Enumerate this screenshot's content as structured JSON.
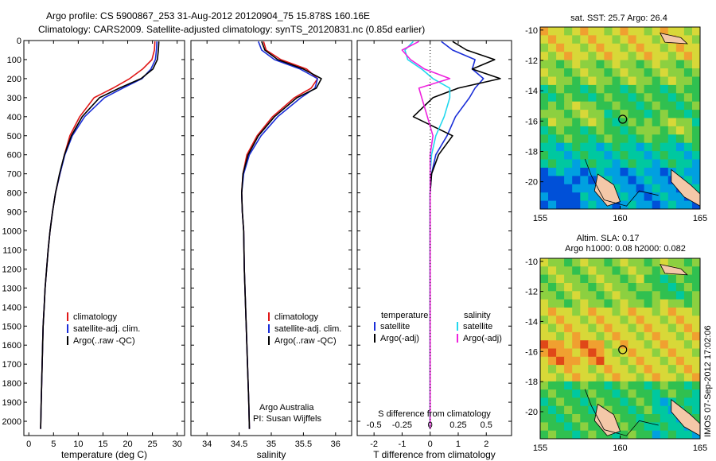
{
  "title": {
    "line1": "Argo profile: CS 5900867_253 31-Aug-2012 20120904_75 15.878S 160.16E",
    "line2": "Climatology: CARS2009. Satellite-adjusted climatology: synTS_20120831.nc (0.85d earlier)"
  },
  "colors": {
    "climatology": "#e01818",
    "satellite": "#1a2ed8",
    "argo": "#000000",
    "sal_satellite": "#22d8ee",
    "sal_argo": "#ee22dd"
  },
  "chart_data": [
    {
      "type": "line",
      "panel": "temperature",
      "xlabel": "temperature (deg C)",
      "ylabel": "",
      "xlim": [
        -1,
        31.5
      ],
      "ylim": [
        2075,
        0
      ],
      "xticks": [
        0,
        5,
        10,
        15,
        20,
        25,
        30
      ],
      "xtick_labels": [
        "0",
        "5",
        "10",
        "15",
        "20",
        "25",
        "30"
      ],
      "yticks": [
        0,
        100,
        200,
        300,
        400,
        500,
        600,
        700,
        800,
        900,
        1000,
        1100,
        1200,
        1300,
        1400,
        1500,
        1600,
        1700,
        1800,
        1900,
        2000
      ],
      "ytick_labels": [
        "0",
        "100",
        "200",
        "300",
        "400",
        "500",
        "600",
        "700",
        "800",
        "900",
        "1000",
        "1100",
        "1200",
        "1300",
        "1400",
        "1500",
        "1600",
        "1700",
        "1800",
        "1900",
        "2000"
      ],
      "legend": [
        "climatology",
        "satellite-adj. clim.",
        "Argo(..raw -QC)"
      ],
      "series": [
        {
          "name": "climatology",
          "key": "climatology",
          "x": [
            25.5,
            25.4,
            24.9,
            23.0,
            20.4,
            17.0,
            13.2,
            10.3,
            8.3,
            7.2,
            6.3,
            5.4,
            4.8,
            4.3,
            3.9,
            3.6,
            3.3,
            3.1,
            2.9,
            2.8,
            2.7,
            2.6,
            2.5,
            2.4
          ],
          "y": [
            5,
            50,
            100,
            150,
            200,
            250,
            300,
            400,
            500,
            600,
            700,
            800,
            900,
            1000,
            1100,
            1200,
            1300,
            1400,
            1500,
            1600,
            1700,
            1800,
            1900,
            2040
          ]
        },
        {
          "name": "satellite-adj. clim.",
          "key": "satellite",
          "x": [
            25.9,
            25.8,
            25.6,
            24.7,
            22.9,
            19.0,
            15.3,
            11.3,
            8.8,
            7.3,
            6.3,
            5.4,
            4.8,
            4.3,
            3.9,
            3.6,
            3.3,
            3.1,
            2.9,
            2.8,
            2.7,
            2.6,
            2.5,
            2.4
          ],
          "y": [
            5,
            50,
            100,
            150,
            200,
            250,
            300,
            400,
            500,
            600,
            700,
            800,
            900,
            1000,
            1100,
            1200,
            1300,
            1400,
            1500,
            1600,
            1700,
            1800,
            1900,
            2040
          ]
        },
        {
          "name": "Argo(..raw -QC)",
          "key": "argo",
          "x": [
            26.3,
            26.2,
            26.0,
            25.1,
            22.7,
            18.3,
            14.3,
            10.8,
            8.6,
            7.2,
            6.2,
            5.4,
            4.8,
            4.3,
            3.9,
            3.6,
            3.3,
            3.1,
            2.9,
            2.8,
            2.7,
            2.6,
            2.5,
            2.4
          ],
          "y": [
            5,
            50,
            100,
            150,
            200,
            250,
            300,
            400,
            500,
            600,
            700,
            800,
            900,
            1000,
            1100,
            1200,
            1300,
            1400,
            1500,
            1600,
            1700,
            1800,
            1900,
            2040
          ]
        }
      ]
    },
    {
      "type": "line",
      "panel": "salinity",
      "xlabel": "salinity",
      "ylabel": "",
      "xlim": [
        33.75,
        36.25
      ],
      "ylim": [
        2075,
        0
      ],
      "xticks": [
        34,
        34.5,
        35,
        35.5,
        36
      ],
      "xtick_labels": [
        "34",
        "34.5",
        "35",
        "35.5",
        "36"
      ],
      "legend": [
        "climatology",
        "satellite-adj. clim.",
        "Argo(..raw -QC)"
      ],
      "annotation": [
        "Argo Australia",
        "PI: Susan Wijffels"
      ],
      "series": [
        {
          "name": "climatology",
          "key": "climatology",
          "x": [
            34.88,
            34.92,
            35.15,
            35.55,
            35.72,
            35.62,
            35.36,
            35.02,
            34.78,
            34.62,
            34.56,
            34.54,
            34.55,
            34.57,
            34.58,
            34.6,
            34.61,
            34.62,
            34.63,
            34.64,
            34.65,
            34.66
          ],
          "y": [
            5,
            50,
            100,
            150,
            200,
            250,
            300,
            400,
            500,
            600,
            700,
            800,
            900,
            1000,
            1200,
            1400,
            1500,
            1600,
            1700,
            1800,
            1900,
            2040
          ]
        },
        {
          "name": "satellite-adj. clim.",
          "key": "satellite",
          "x": [
            34.8,
            34.85,
            35.05,
            35.45,
            35.72,
            35.68,
            35.46,
            35.1,
            34.84,
            34.66,
            34.57,
            34.54,
            34.55,
            34.57,
            34.58,
            34.6,
            34.61,
            34.62,
            34.63,
            34.64,
            34.65,
            34.66
          ],
          "y": [
            5,
            50,
            100,
            150,
            200,
            250,
            300,
            400,
            500,
            600,
            700,
            800,
            900,
            1000,
            1200,
            1400,
            1500,
            1600,
            1700,
            1800,
            1900,
            2040
          ]
        },
        {
          "name": "Argo(..raw -QC)",
          "key": "argo",
          "x": [
            34.85,
            34.9,
            35.1,
            35.5,
            35.78,
            35.7,
            35.4,
            35.05,
            34.8,
            34.64,
            34.56,
            34.54,
            34.55,
            34.57,
            34.58,
            34.6,
            34.61,
            34.62,
            34.63,
            34.64,
            34.65,
            34.66
          ],
          "y": [
            5,
            50,
            100,
            150,
            200,
            250,
            300,
            400,
            500,
            600,
            700,
            800,
            900,
            1000,
            1200,
            1400,
            1500,
            1600,
            1700,
            1800,
            1900,
            2040
          ]
        }
      ]
    },
    {
      "type": "line",
      "panel": "difference",
      "xlabel_top": "S difference from climatology",
      "xlabel": "T difference from climatology",
      "xlim": [
        -2.6,
        2.9
      ],
      "ylim": [
        2075,
        0
      ],
      "xticks": [
        -2,
        -1,
        0,
        1,
        2
      ],
      "xtick_labels": [
        "-2",
        "-1",
        "0",
        "1",
        "2"
      ],
      "xticks_top": [
        -0.5,
        -0.25,
        0,
        0.25,
        0.5
      ],
      "xtick_labels_top": [
        "-0.5",
        "-0.25",
        "0",
        "0.25",
        "0.5"
      ],
      "legend": {
        "temperature_header": "temperature",
        "temperature": [
          "satellite",
          "Argo(-adj)"
        ],
        "salinity_header": "salinity",
        "salinity": [
          "satellite",
          "Argo(-adj)"
        ]
      },
      "series": [
        {
          "name": "temperature satellite",
          "key": "satellite",
          "x": [
            0.4,
            0.8,
            1.6,
            1.5,
            1.9,
            1.6,
            1.4,
            0.9,
            0.6,
            0.2,
            0.05,
            0.0,
            0.0,
            0.0,
            0.0,
            0.0,
            0.0,
            0.0,
            0.0
          ],
          "y": [
            5,
            50,
            100,
            150,
            200,
            250,
            300,
            400,
            500,
            600,
            700,
            800,
            1000,
            1200,
            1400,
            1600,
            1800,
            1900,
            2040
          ]
        },
        {
          "name": "temperature Argo(-adj)",
          "key": "argo",
          "x": [
            0.8,
            1.3,
            2.3,
            1.5,
            2.5,
            1.0,
            0.1,
            -0.6,
            0.8,
            0.3,
            0.05,
            0.0,
            0.0,
            0.0,
            0.0,
            0.0,
            0.0,
            0.0,
            0.0
          ],
          "y": [
            5,
            50,
            100,
            150,
            200,
            250,
            300,
            400,
            500,
            600,
            700,
            800,
            1000,
            1200,
            1400,
            1600,
            1800,
            1900,
            2040
          ]
        },
        {
          "name": "salinity satellite",
          "key": "sal_satellite",
          "x": [
            -0.6,
            -0.9,
            -0.8,
            -0.3,
            0.1,
            0.7,
            0.7,
            0.5,
            0.2,
            0.05,
            0.0,
            0.0,
            0.0,
            0.0,
            0.0,
            0.0,
            0.0,
            0.0,
            0.0
          ],
          "y": [
            5,
            50,
            100,
            150,
            200,
            250,
            300,
            400,
            500,
            600,
            700,
            800,
            1000,
            1200,
            1400,
            1600,
            1800,
            1900,
            2040
          ]
        },
        {
          "name": "salinity Argo(-adj)",
          "key": "sal_argo",
          "x": [
            -0.4,
            -1.0,
            -0.7,
            -0.2,
            0.7,
            -0.4,
            -0.3,
            -0.1,
            0.1,
            0.0,
            0.0,
            0.0,
            0.0,
            0.0,
            0.0,
            0.0,
            0.0,
            0.0,
            0.0
          ],
          "y": [
            5,
            50,
            100,
            150,
            200,
            250,
            300,
            400,
            500,
            600,
            700,
            800,
            1000,
            1200,
            1400,
            1600,
            1800,
            1900,
            2040
          ]
        }
      ]
    },
    {
      "type": "heatmap",
      "panel": "map-sst",
      "title": "sat. SST: 25.7  Argo: 26.4",
      "xlim": [
        155,
        165
      ],
      "ylim": [
        -21.8,
        -9.8
      ],
      "xticks": [
        155,
        160,
        165
      ],
      "xtick_labels": [
        "155",
        "160",
        "165"
      ],
      "yticks": [
        -10,
        -12,
        -14,
        -16,
        -18,
        -20
      ],
      "ytick_labels": [
        "-10",
        "-12",
        "-14",
        "-16",
        "-18",
        "-20"
      ],
      "marker": {
        "lon": 160.16,
        "lat": -15.878
      },
      "colormap": [
        "#0050d8",
        "#00a0e0",
        "#00c8a0",
        "#30c050",
        "#8cd040",
        "#d8d838",
        "#f0a030",
        "#e04818"
      ],
      "bands": [
        {
          "lat_top": -9.8,
          "lat_bottom": -12.2,
          "level": 5
        },
        {
          "lat_top": -12.2,
          "lat_bottom": -13.8,
          "level": 4
        },
        {
          "lat_top": -13.8,
          "lat_bottom": -17.4,
          "level": 3
        },
        {
          "lat_top": -17.4,
          "lat_bottom": -19.0,
          "level": 2
        },
        {
          "lat_top": -19.0,
          "lat_bottom": -21.8,
          "level": 1
        }
      ],
      "patches": [
        {
          "lon0": 155.5,
          "lon1": 159.2,
          "lat0": -14.8,
          "lat1": -16.6,
          "level": 4
        },
        {
          "lon0": 161.6,
          "lon1": 164.6,
          "lat0": -15.8,
          "lat1": -17.0,
          "level": 4
        },
        {
          "lon0": 155.0,
          "lon1": 157.6,
          "lat0": -19.6,
          "lat1": -21.8,
          "level": 0
        }
      ]
    },
    {
      "type": "heatmap",
      "panel": "map-sla",
      "title": "Altim. SLA: 0.17",
      "subtitle": "Argo h1000: 0.08 h2000: 0.082",
      "xlim": [
        155,
        165
      ],
      "ylim": [
        -21.8,
        -9.8
      ],
      "xticks": [
        155,
        160,
        165
      ],
      "xtick_labels": [
        "155",
        "160",
        "165"
      ],
      "yticks": [
        -10,
        -12,
        -14,
        -16,
        -18,
        -20
      ],
      "ytick_labels": [
        "-10",
        "-12",
        "-14",
        "-16",
        "-18",
        "-20"
      ],
      "marker": {
        "lon": 160.16,
        "lat": -15.878
      },
      "colormap": [
        "#0050d8",
        "#00a0e0",
        "#00c8a0",
        "#30c050",
        "#8cd040",
        "#d8d838",
        "#f0a030",
        "#e04818"
      ],
      "bands": [
        {
          "lat_top": -9.8,
          "lat_bottom": -13.0,
          "level": 4
        },
        {
          "lat_top": -13.0,
          "lat_bottom": -18.2,
          "level": 5
        },
        {
          "lat_top": -18.2,
          "lat_bottom": -21.8,
          "level": 3
        }
      ],
      "patches": [
        {
          "lon0": 155.2,
          "lon1": 159.2,
          "lat0": -15.0,
          "lat1": -16.8,
          "level": 6
        },
        {
          "lon0": 161.5,
          "lon1": 164.8,
          "lat0": -11.0,
          "lat1": -12.6,
          "level": 3
        },
        {
          "lon0": 162.0,
          "lon1": 164.8,
          "lat0": -19.0,
          "lat1": -21.6,
          "level": 2
        }
      ]
    }
  ],
  "side_label": "IMOS 07-Sep-2012 17:02:06"
}
